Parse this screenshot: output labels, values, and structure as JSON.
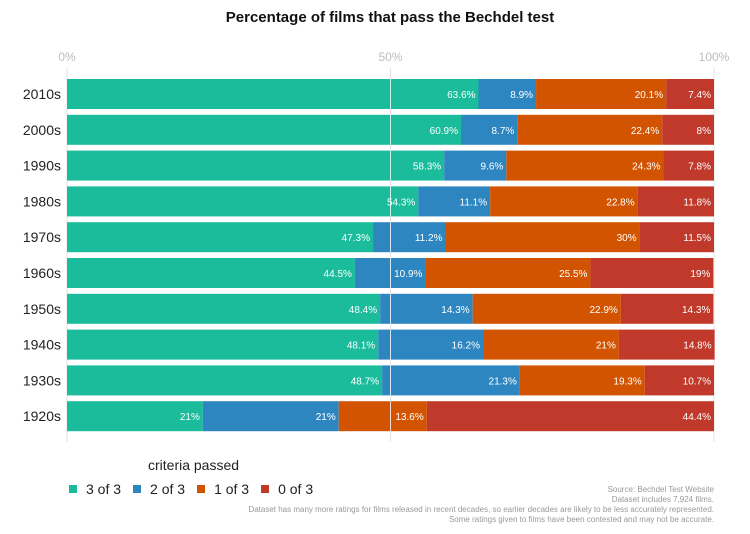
{
  "chart_data": {
    "type": "bar",
    "orientation": "horizontal",
    "stacked": true,
    "title": "Percentage of films that pass the Bechdel test",
    "xlabel": "",
    "ylabel": "",
    "xlim": [
      0,
      100
    ],
    "x_ticks": [
      "0%",
      "50%",
      "100%"
    ],
    "x_tick_values": [
      0,
      50,
      100
    ],
    "grid": true,
    "legend_title": "criteria passed",
    "legend_position": "bottom-left",
    "categories": [
      "2010s",
      "2000s",
      "1990s",
      "1980s",
      "1970s",
      "1960s",
      "1950s",
      "1940s",
      "1930s",
      "1920s"
    ],
    "series": [
      {
        "name": "3 of 3",
        "color": "#1abc9c",
        "values": [
          63.6,
          60.9,
          58.3,
          54.3,
          47.3,
          44.5,
          48.4,
          48.1,
          48.7,
          21
        ],
        "labels": [
          "63.6%",
          "60.9%",
          "58.3%",
          "54.3%",
          "47.3%",
          "44.5%",
          "48.4%",
          "48.1%",
          "48.7%",
          "21%"
        ]
      },
      {
        "name": "2 of 3",
        "color": "#2e86c1",
        "values": [
          8.9,
          8.7,
          9.6,
          11.1,
          11.2,
          10.9,
          14.3,
          16.2,
          21.3,
          21
        ],
        "labels": [
          "8.9%",
          "8.7%",
          "9.6%",
          "11.1%",
          "11.2%",
          "10.9%",
          "14.3%",
          "16.2%",
          "21.3%",
          "21%"
        ]
      },
      {
        "name": "1 of 3",
        "color": "#d35400",
        "values": [
          20.1,
          22.4,
          24.3,
          22.8,
          30,
          25.5,
          22.9,
          21,
          19.3,
          13.6
        ],
        "labels": [
          "20.1%",
          "22.4%",
          "24.3%",
          "22.8%",
          "30%",
          "25.5%",
          "22.9%",
          "21%",
          "19.3%",
          "13.6%"
        ]
      },
      {
        "name": "0 of 3",
        "color": "#c0392b",
        "values": [
          7.4,
          8,
          7.8,
          11.8,
          11.5,
          19,
          14.3,
          14.8,
          10.7,
          44.4
        ],
        "labels": [
          "7.4%",
          "8%",
          "7.8%",
          "11.8%",
          "11.5%",
          "19%",
          "14.3%",
          "14.8%",
          "10.7%",
          "44.4%"
        ]
      }
    ]
  },
  "notes": [
    "Source: Bechdel Test Website",
    "Dataset includes 7,924 films.",
    "Dataset has many more ratings for films released in recent decades, so earlier decades are likely to be less accurately represented.",
    "Some ratings given to films have been contested and may not be accurate."
  ]
}
